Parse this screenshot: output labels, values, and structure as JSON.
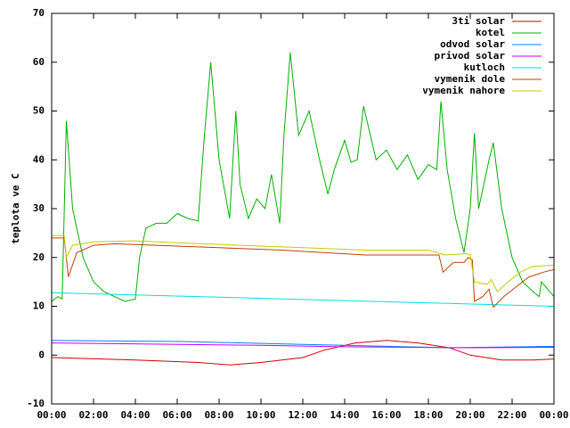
{
  "chart_data": {
    "type": "line",
    "ylabel": "teplota ve C",
    "xlim": [
      0,
      24
    ],
    "ylim": [
      -10,
      70
    ],
    "xticks": [
      {
        "value": 0,
        "label": "00:00"
      },
      {
        "value": 2,
        "label": "02:00"
      },
      {
        "value": 4,
        "label": "04:00"
      },
      {
        "value": 6,
        "label": "06:00"
      },
      {
        "value": 8,
        "label": "08:00"
      },
      {
        "value": 10,
        "label": "10:00"
      },
      {
        "value": 12,
        "label": "12:00"
      },
      {
        "value": 14,
        "label": "14:00"
      },
      {
        "value": 16,
        "label": "16:00"
      },
      {
        "value": 18,
        "label": "18:00"
      },
      {
        "value": 20,
        "label": "20:00"
      },
      {
        "value": 22,
        "label": "22:00"
      },
      {
        "value": 24,
        "label": "00:00"
      }
    ],
    "yticks": [
      -10,
      0,
      10,
      20,
      30,
      40,
      50,
      60,
      70
    ],
    "legend": "top-right",
    "series": [
      {
        "name": "3ti solar",
        "color": "#d00000",
        "x": [
          0,
          4,
          7,
          8.5,
          10,
          12,
          13,
          14.5,
          16,
          17.5,
          19,
          20,
          21.5,
          23,
          24
        ],
        "values": [
          -0.5,
          -1,
          -1.5,
          -2,
          -1.5,
          -0.5,
          1,
          2.5,
          3,
          2.5,
          1.5,
          0,
          -1,
          -1,
          -0.8
        ]
      },
      {
        "name": "kotel",
        "color": "#00b000",
        "x": [
          0,
          0.3,
          0.5,
          0.7,
          1,
          1.5,
          2,
          2.5,
          3,
          3.5,
          4,
          4.2,
          4.5,
          5,
          5.5,
          6,
          6.5,
          7,
          7.3,
          7.6,
          8,
          8.5,
          8.8,
          9,
          9.4,
          9.8,
          10.2,
          10.5,
          10.9,
          11.1,
          11.4,
          11.8,
          12.3,
          12.8,
          13.2,
          13.5,
          14,
          14.3,
          14.6,
          14.9,
          15.5,
          16,
          16.5,
          17,
          17.5,
          18,
          18.4,
          18.6,
          18.9,
          19.3,
          19.7,
          20,
          20.2,
          20.4,
          20.9,
          21.1,
          21.5,
          22,
          22.5,
          23,
          23.3,
          23.4,
          24
        ],
        "values": [
          11,
          12,
          11.5,
          48,
          30,
          20,
          15,
          13,
          12,
          11,
          11.5,
          20,
          26,
          27,
          27,
          29,
          28,
          27.5,
          45,
          60,
          40,
          28,
          50,
          35,
          28,
          32,
          30,
          37,
          27,
          45,
          62,
          45,
          50,
          40,
          33,
          38,
          44,
          39.5,
          40,
          51,
          40,
          42,
          38,
          41,
          36,
          39,
          38,
          52,
          38,
          28,
          21,
          30,
          45.5,
          30,
          40,
          43.5,
          30,
          20,
          15,
          13,
          12,
          15,
          12
        ]
      },
      {
        "name": "odvod solar",
        "color": "#0080ff",
        "x": [
          0,
          6,
          12,
          19,
          24
        ],
        "values": [
          3,
          2.8,
          2.2,
          1.5,
          1.8
        ]
      },
      {
        "name": "privod solar",
        "color": "#c000ff",
        "x": [
          0,
          10,
          14,
          20,
          24
        ],
        "values": [
          2.5,
          2,
          1.7,
          1.5,
          1.6
        ]
      },
      {
        "name": "kutloch",
        "color": "#00e0e0",
        "x": [
          0,
          24
        ],
        "values": [
          12.8,
          10
        ]
      },
      {
        "name": "vymenik dole",
        "color": "#c04000",
        "x": [
          0,
          0.6,
          0.8,
          1.2,
          2,
          3,
          5,
          8,
          11,
          13,
          15,
          18.5,
          18.7,
          19.2,
          19.7,
          19.9,
          20.1,
          20.2,
          20.6,
          20.9,
          21.1,
          21.6,
          22.2,
          22.8,
          23.5,
          24
        ],
        "values": [
          24,
          24,
          16,
          21,
          22.5,
          22.8,
          22.5,
          22,
          21.5,
          21,
          20.5,
          20.5,
          17,
          19,
          19,
          20,
          19.5,
          11,
          12,
          13.5,
          9.8,
          12,
          14,
          16,
          17,
          17.5
        ]
      },
      {
        "name": "vymenik nahore",
        "color": "#c8c800",
        "x": [
          0,
          0.6,
          0.7,
          1,
          2,
          4,
          6,
          9,
          12,
          15,
          18,
          18.8,
          19.8,
          20,
          20.2,
          20.8,
          21,
          21.3,
          21.8,
          22.4,
          23,
          24
        ],
        "values": [
          24.5,
          24.5,
          20,
          22.5,
          23.2,
          23.4,
          23,
          22.5,
          22,
          21.5,
          21.5,
          20.5,
          20.8,
          20.5,
          15,
          14.5,
          15.5,
          13,
          15,
          17,
          18.2,
          18.4
        ]
      }
    ]
  }
}
